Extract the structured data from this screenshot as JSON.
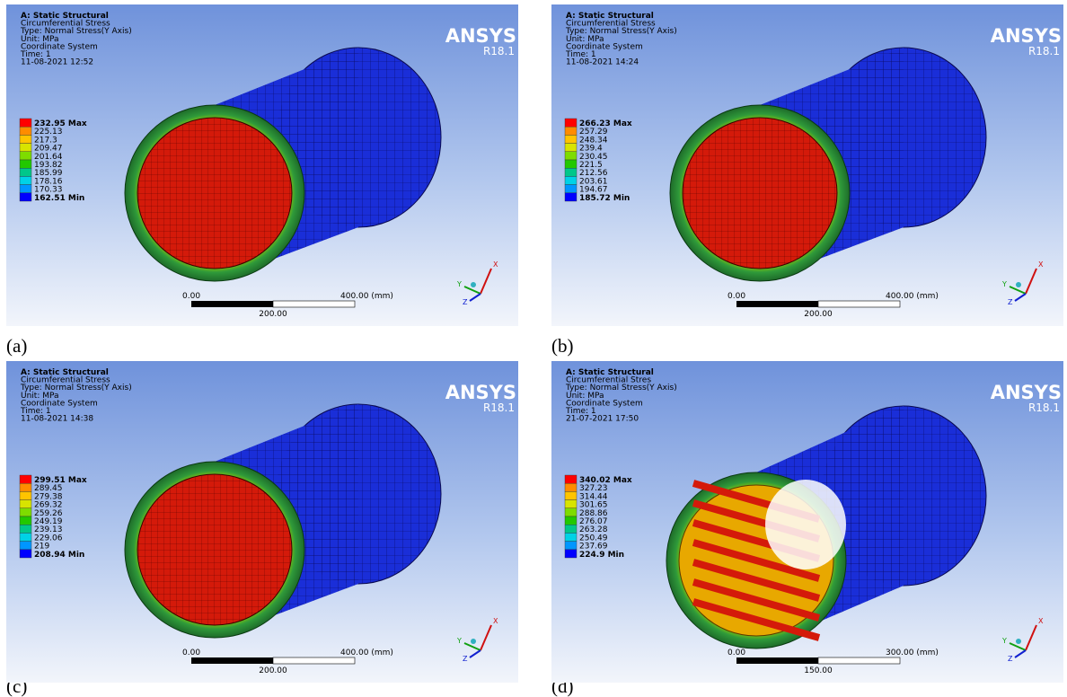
{
  "panels": [
    {
      "label": "(a)",
      "header": [
        "A: Static Structural",
        "Circumferential Stress",
        "Type: Normal Stress(Y Axis)",
        "Unit: MPa",
        "Coordinate System",
        "Time: 1",
        "11-08-2021 12:52"
      ],
      "logo": "ANSYS",
      "version": "R18.1",
      "legend": [
        "232.95 Max",
        "225.13",
        "217.3",
        "209.47",
        "201.64",
        "193.82",
        "185.99",
        "178.16",
        "170.33",
        "162.51 Min"
      ],
      "scale": {
        "start": "0.00",
        "end": "400.00 (mm)",
        "mid": "200.00"
      },
      "triad": [
        "X",
        "Y",
        "Z"
      ]
    },
    {
      "label": "(b)",
      "header": [
        "A: Static Structural",
        "Circumferential Stress",
        "Type: Normal Stress(Y Axis)",
        "Unit: MPa",
        "Coordinate System",
        "Time: 1",
        "11-08-2021 14:24"
      ],
      "logo": "ANSYS",
      "version": "R18.1",
      "legend": [
        "266.23 Max",
        "257.29",
        "248.34",
        "239.4",
        "230.45",
        "221.5",
        "212.56",
        "203.61",
        "194.67",
        "185.72 Min"
      ],
      "scale": {
        "start": "0.00",
        "end": "400.00 (mm)",
        "mid": "200.00"
      },
      "triad": [
        "X",
        "Y",
        "Z"
      ]
    },
    {
      "label": "(c)",
      "header": [
        "A: Static Structural",
        "Circumferential Stress",
        "Type: Normal Stress(Y Axis)",
        "Unit: MPa",
        "Coordinate System",
        "Time: 1",
        "11-08-2021 14:38"
      ],
      "logo": "ANSYS",
      "version": "R18.1",
      "legend": [
        "299.51 Max",
        "289.45",
        "279.38",
        "269.32",
        "259.26",
        "249.19",
        "239.13",
        "229.06",
        "219",
        "208.94 Min"
      ],
      "scale": {
        "start": "0.00",
        "end": "400.00 (mm)",
        "mid": "200.00"
      },
      "triad": [
        "X",
        "Y",
        "Z"
      ]
    },
    {
      "label": "(d)",
      "header": [
        "A: Static Structural",
        "Circumferential Stres",
        "Type: Normal Stress(Y Axis)",
        "Unit: MPa",
        "Coordinate System",
        "Time: 1",
        "21-07-2021 17:50"
      ],
      "logo": "ANSYS",
      "version": "R18.1",
      "legend": [
        "340.02 Max",
        "327.23",
        "314.44",
        "301.65",
        "288.86",
        "276.07",
        "263.28",
        "250.49",
        "237.69",
        "224.9 Min"
      ],
      "scale": {
        "start": "0.00",
        "end": "300.00 (mm)",
        "mid": "150.00"
      },
      "triad": [
        "X",
        "Y",
        "Z"
      ]
    }
  ]
}
